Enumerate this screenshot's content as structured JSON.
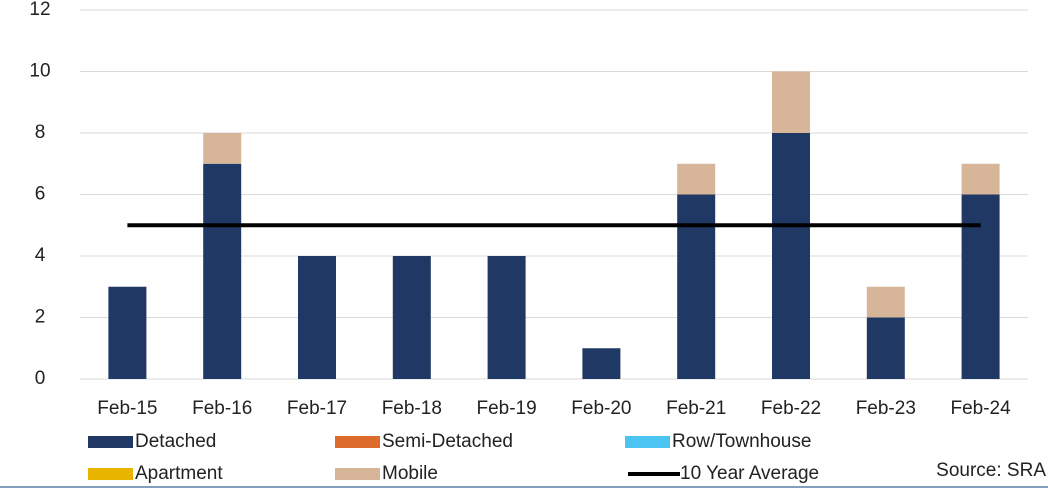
{
  "chart_data": {
    "type": "bar",
    "stacked": true,
    "categories": [
      "Feb-15",
      "Feb-16",
      "Feb-17",
      "Feb-18",
      "Feb-19",
      "Feb-20",
      "Feb-21",
      "Feb-22",
      "Feb-23",
      "Feb-24"
    ],
    "series": [
      {
        "name": "Detached",
        "type": "bar",
        "color": "#1f3864",
        "values": [
          3,
          7,
          4,
          4,
          4,
          1,
          6,
          8,
          2,
          6
        ]
      },
      {
        "name": "Semi-Detached",
        "type": "bar",
        "color": "#dd6b2c",
        "values": [
          0,
          0,
          0,
          0,
          0,
          0,
          0,
          0,
          0,
          0
        ]
      },
      {
        "name": "Row/Townhouse",
        "type": "bar",
        "color": "#4cc4f2",
        "values": [
          0,
          0,
          0,
          0,
          0,
          0,
          0,
          0,
          0,
          0
        ]
      },
      {
        "name": "Apartment",
        "type": "bar",
        "color": "#e8b400",
        "values": [
          0,
          0,
          0,
          0,
          0,
          0,
          0,
          0,
          0,
          0
        ]
      },
      {
        "name": "Mobile",
        "type": "bar",
        "color": "#d6b598",
        "values": [
          0,
          1,
          0,
          0,
          0,
          0,
          1,
          2,
          1,
          1
        ]
      },
      {
        "name": "10 Year Average",
        "type": "line",
        "color": "#000000",
        "values": [
          5,
          5,
          5,
          5,
          5,
          5,
          5,
          5,
          5,
          5
        ]
      }
    ],
    "ylim": [
      0,
      12
    ],
    "yticks": [
      0,
      2,
      4,
      6,
      8,
      10,
      12
    ],
    "grid": true,
    "annotation": "Source: SRA"
  }
}
